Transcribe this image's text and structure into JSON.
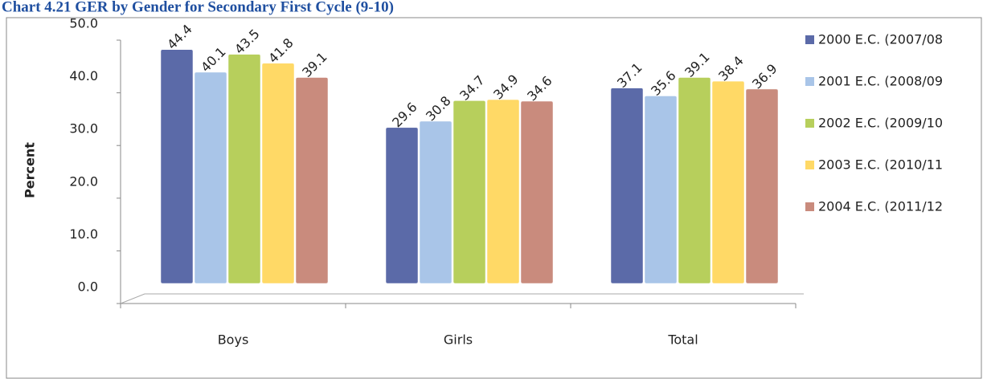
{
  "chart_data": {
    "type": "bar",
    "title": "Chart 4.21 GER by Gender for Secondary First Cycle (9-10)",
    "y_label": "Percent",
    "categories": [
      "Boys",
      "Girls",
      "Total"
    ],
    "series": [
      {
        "name": "2000 E.C. (2007/08",
        "color": "#5b6aa8",
        "values": [
          44.4,
          29.6,
          37.1
        ]
      },
      {
        "name": "2001 E.C. (2008/09",
        "color": "#a9c5e8",
        "values": [
          40.1,
          30.8,
          35.6
        ]
      },
      {
        "name": "2002 E.C. (2009/10",
        "color": "#b7cf5c",
        "values": [
          43.5,
          34.7,
          39.1
        ]
      },
      {
        "name": "2003 E.C. (2010/11",
        "color": "#ffd966",
        "values": [
          41.8,
          34.9,
          38.4
        ]
      },
      {
        "name": "2004 E.C. (2011/12",
        "color": "#c98b7d",
        "values": [
          39.1,
          34.6,
          36.9
        ]
      }
    ],
    "ylim": [
      0,
      50
    ],
    "yticks": [
      {
        "value": 0,
        "label": "0.0"
      },
      {
        "value": 10,
        "label": "10.0"
      },
      {
        "value": 20,
        "label": "20.0"
      },
      {
        "value": 30,
        "label": "30.0"
      },
      {
        "value": 40,
        "label": "40.0"
      },
      {
        "value": 50,
        "label": "50.0"
      }
    ],
    "legend": "right"
  }
}
